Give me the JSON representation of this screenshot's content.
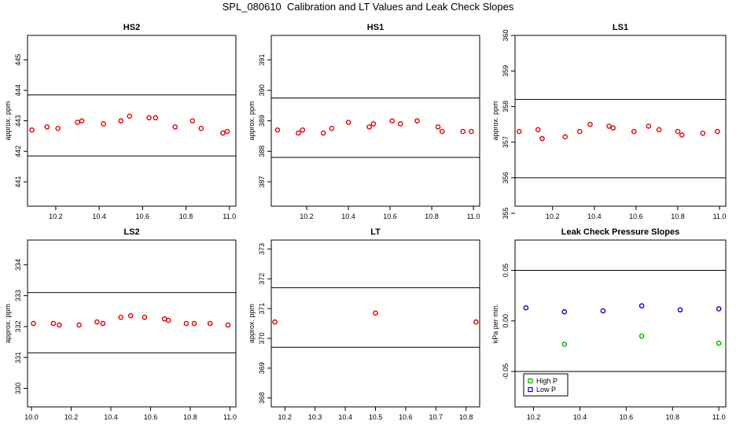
{
  "title": "SPL_080610  Calibration and LT Values and Leak Check Slopes",
  "colors": {
    "red": "#e00000",
    "green": "#00b000",
    "blue": "#0000d0",
    "axis": "#000000"
  },
  "chart_data": [
    {
      "type": "scatter",
      "title": "HS2",
      "ylabel": "approx. ppm",
      "xlim": [
        10.07,
        11.03
      ],
      "ylim": [
        440.2,
        445.8
      ],
      "xticks": [
        10.2,
        10.4,
        10.6,
        10.8,
        11.0
      ],
      "yticks": [
        441,
        442,
        443,
        444,
        445
      ],
      "hlines": [
        441.85,
        443.85
      ],
      "series": [
        {
          "color": "red",
          "x": [
            10.09,
            10.16,
            10.21,
            10.3,
            10.32,
            10.42,
            10.5,
            10.54,
            10.63,
            10.66,
            10.75,
            10.83,
            10.87,
            10.97,
            10.99
          ],
          "y": [
            442.7,
            442.8,
            442.75,
            442.95,
            443.0,
            442.9,
            443.0,
            443.15,
            443.1,
            443.1,
            442.8,
            443.0,
            442.75,
            442.6,
            442.65
          ]
        }
      ]
    },
    {
      "type": "scatter",
      "title": "HS1",
      "ylabel": "approx. ppm",
      "xlim": [
        10.03,
        11.03
      ],
      "ylim": [
        386.2,
        391.8
      ],
      "xticks": [
        10.2,
        10.4,
        10.6,
        10.8,
        11.0
      ],
      "yticks": [
        387,
        388,
        389,
        390,
        391
      ],
      "hlines": [
        387.8,
        389.75
      ],
      "series": [
        {
          "color": "red",
          "x": [
            10.06,
            10.16,
            10.18,
            10.28,
            10.32,
            10.4,
            10.5,
            10.52,
            10.61,
            10.65,
            10.73,
            10.83,
            10.85,
            10.95,
            10.99
          ],
          "y": [
            388.7,
            388.6,
            388.7,
            388.6,
            388.75,
            388.95,
            388.8,
            388.9,
            389.0,
            388.9,
            389.0,
            388.8,
            388.65,
            388.65,
            388.65
          ]
        }
      ]
    },
    {
      "type": "scatter",
      "title": "LS1",
      "ylabel": "approx. ppm",
      "xlim": [
        10.02,
        11.03
      ],
      "ylim": [
        355.2,
        360.0
      ],
      "xticks": [
        10.2,
        10.4,
        10.6,
        10.8,
        11.0
      ],
      "yticks": [
        355,
        356,
        357,
        358,
        359,
        360
      ],
      "hlines": [
        356.0,
        358.2
      ],
      "series": [
        {
          "color": "red",
          "x": [
            10.04,
            10.13,
            10.15,
            10.26,
            10.33,
            10.38,
            10.47,
            10.49,
            10.59,
            10.66,
            10.71,
            10.8,
            10.82,
            10.92,
            10.99
          ],
          "y": [
            357.3,
            357.35,
            357.1,
            357.15,
            357.3,
            357.5,
            357.45,
            357.4,
            357.3,
            357.45,
            357.35,
            357.3,
            357.2,
            357.25,
            357.3
          ]
        }
      ]
    },
    {
      "type": "scatter",
      "title": "LS2",
      "ylabel": "approx. ppm",
      "xlim": [
        9.98,
        11.03
      ],
      "ylim": [
        329.4,
        334.8
      ],
      "xticks": [
        10.0,
        10.2,
        10.4,
        10.6,
        10.8,
        11.0
      ],
      "yticks": [
        330,
        331,
        332,
        333,
        334
      ],
      "hlines": [
        331.15,
        333.1
      ],
      "series": [
        {
          "color": "red",
          "x": [
            10.01,
            10.11,
            10.14,
            10.24,
            10.33,
            10.36,
            10.45,
            10.5,
            10.57,
            10.67,
            10.69,
            10.78,
            10.82,
            10.9,
            10.99
          ],
          "y": [
            332.1,
            332.1,
            332.05,
            332.05,
            332.15,
            332.1,
            332.3,
            332.35,
            332.3,
            332.25,
            332.2,
            332.1,
            332.1,
            332.1,
            332.05
          ]
        }
      ]
    },
    {
      "type": "scatter",
      "title": "LT",
      "ylabel": "approx. ppm",
      "xlim": [
        10.155,
        10.845
      ],
      "ylim": [
        367.7,
        373.3
      ],
      "xticks": [
        10.2,
        10.3,
        10.4,
        10.5,
        10.6,
        10.7,
        10.8
      ],
      "yticks": [
        368,
        369,
        370,
        371,
        372,
        373
      ],
      "hlines": [
        369.7,
        371.7
      ],
      "series": [
        {
          "color": "red",
          "x": [
            10.167,
            10.5,
            10.833
          ],
          "y": [
            370.55,
            370.85,
            370.55
          ]
        }
      ]
    },
    {
      "type": "scatter",
      "title": "Leak Check Pressure Slopes",
      "ylabel": "kPa per min.",
      "xlim": [
        10.12,
        11.03
      ],
      "ylim": [
        -0.085,
        0.08
      ],
      "xticks": [
        10.2,
        10.4,
        10.6,
        10.8,
        11.0
      ],
      "yticks": [
        -0.05,
        0.0,
        0.05
      ],
      "ytick_labels": [
        "-0.05",
        "0.00",
        "0.05"
      ],
      "hlines": [
        -0.05,
        0.05
      ],
      "legend": {
        "position": "bottom-left"
      },
      "series": [
        {
          "name": "High P",
          "color": "green",
          "x": [
            10.333,
            10.667,
            11.0
          ],
          "y": [
            -0.023,
            -0.015,
            -0.022
          ]
        },
        {
          "name": "Low P",
          "color": "blue",
          "x": [
            10.167,
            10.333,
            10.5,
            10.667,
            10.833,
            11.0
          ],
          "y": [
            0.013,
            0.009,
            0.01,
            0.015,
            0.011,
            0.012
          ]
        }
      ]
    }
  ]
}
